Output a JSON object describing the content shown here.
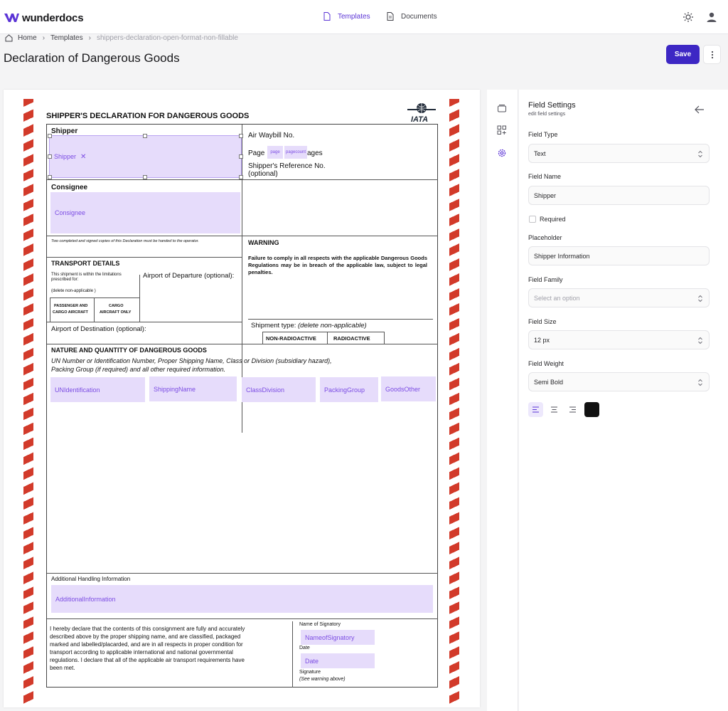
{
  "app": {
    "logo_text": "wunderdocs",
    "nav": {
      "templates": "Templates",
      "documents": "Documents"
    },
    "icons": [
      "sun-icon",
      "user-icon"
    ]
  },
  "breadcrumb": {
    "home": "Home",
    "templates": "Templates",
    "current": "shippers-declaration-open-format-non-fillable"
  },
  "page": {
    "title": "Declaration of Dangerous Goods",
    "save_label": "Save"
  },
  "document": {
    "form_title": "SHIPPER'S DECLARATION FOR DANGEROUS GOODS",
    "iata_label": "IATA",
    "shipper_label": "Shipper",
    "air_waybill_label": "Air Waybill No.",
    "page_label": "Page",
    "pages_suffix": "ages",
    "shipper_ref_label": "Shipper's Reference No.",
    "optional_label": "(optional)",
    "consignee_label": "Consignee",
    "copies_note": "Two completed and signed copies of this Declaration must be handed to the operator.",
    "warning_label": "WARNING",
    "warning_text": "Failure to comply in all respects with the applicable Dangerous Goods Regulations may be in breach of the applicable law, subject to legal penalties.",
    "transport_label": "TRANSPORT DETAILS",
    "limitations_text_1": "This shipment is within the limitations",
    "limitations_text_2": "prescribed for:",
    "delete_note": "(delete non-applicable )",
    "passenger_label_1": "PASSENGER AND",
    "passenger_label_2": "CARGO AIRCRAFT",
    "cargo_label_1": "CARGO",
    "cargo_label_2": "AIRCRAFT ONLY",
    "departure_label": "Airport of Departure (optional):",
    "destination_label": "Airport of Destination (optional):",
    "shipment_type_label": "Shipment type:",
    "shipment_type_note": "(delete non-applicable)",
    "non_radioactive_label": "NON-RADIOACTIVE",
    "radioactive_label": "RADIOACTIVE",
    "nature_label": "NATURE AND QUANTITY OF DANGEROUS GOODS",
    "nature_text_1": "UN Number or Identification Number, Proper Shipping Name, Class or Division (subsidiary hazard),",
    "nature_text_2": "Packing Group (if required) and all other required information.",
    "additional_label": "Additional Handling Information",
    "declaration_text_1": "I hereby declare that the contents of this consignment are fully and accurately",
    "declaration_text_2": "described above by the proper shipping name, and are classified, packaged",
    "declaration_text_3": "marked and labelled/placarded, and are in all respects in proper condition for",
    "declaration_text_4": "transport according to applicable international and national governmental",
    "declaration_text_5": "regulations. I declare that all of the applicable air transport requirements have",
    "declaration_text_6": "been met.",
    "name_signatory_label": "Name of Signatory",
    "date_label": "Date",
    "signature_label": "Signature",
    "signature_note": "(See warning above)",
    "fields": {
      "shipper": "Shipper",
      "page": "page",
      "pagecount": "pagecount",
      "consignee": "Consignee",
      "un_identification": "UNIdentification",
      "shipping_name": "ShippingName",
      "class_division": "ClassDivision",
      "packing_group": "PackingGroup",
      "goods_other": "GoodsOther",
      "additional_information": "AdditionalInformation",
      "name_of_signatory": "NameofSignatory",
      "date": "Date"
    }
  },
  "settings": {
    "title": "Field Settings",
    "subtitle": "edit field settings",
    "field_type_label": "Field Type",
    "field_type_value": "Text",
    "field_name_label": "Field Name",
    "field_name_value": "Shipper",
    "required_label": "Required",
    "placeholder_label": "Placeholder",
    "placeholder_value": "Shipper Information",
    "field_family_label": "Field Family",
    "field_family_placeholder": "Select an option",
    "field_size_label": "Field Size",
    "field_size_value": "12 px",
    "field_weight_label": "Field Weight",
    "field_weight_value": "Semi Bold",
    "alignment_active": "left",
    "color_value": "#111111"
  },
  "colors": {
    "accent": "#3d27c4",
    "nav_active": "#5b34d6",
    "field_bg": "#e6dcfb",
    "field_text": "#7c4de3",
    "hazard": "#d23a2a"
  }
}
